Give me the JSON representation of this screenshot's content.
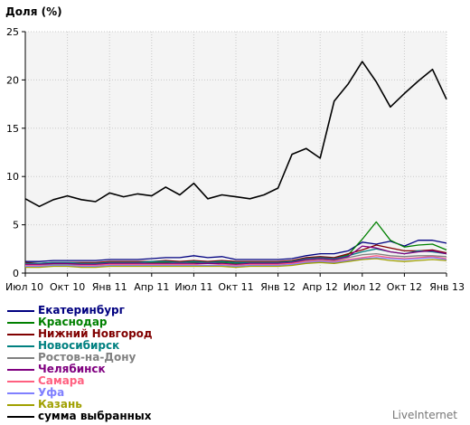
{
  "chart_data": {
    "type": "line",
    "ylabel": "Доля (%)",
    "ylim": [
      0,
      25
    ],
    "yticks": [
      0,
      5,
      10,
      15,
      20,
      25
    ],
    "grid": true,
    "legend_position": "bottom-left",
    "x_tick_labels": [
      "Июл 10",
      "Окт 10",
      "Янв 11",
      "Апр 11",
      "Июл 11",
      "Окт 11",
      "Янв 12",
      "Апр 12",
      "Июл 12",
      "Окт 12",
      "Янв 13"
    ],
    "x_tick_indices": [
      0,
      3,
      6,
      9,
      12,
      15,
      18,
      21,
      24,
      27,
      30
    ],
    "x": [
      "2010-07",
      "2010-08",
      "2010-09",
      "2010-10",
      "2010-11",
      "2010-12",
      "2011-01",
      "2011-02",
      "2011-03",
      "2011-04",
      "2011-05",
      "2011-06",
      "2011-07",
      "2011-08",
      "2011-09",
      "2011-10",
      "2011-11",
      "2011-12",
      "2012-01",
      "2012-02",
      "2012-03",
      "2012-04",
      "2012-05",
      "2012-06",
      "2012-07",
      "2012-08",
      "2012-09",
      "2012-10",
      "2012-11",
      "2012-12",
      "2013-01"
    ],
    "series": [
      {
        "name": "Екатеринбург",
        "color": "#000080",
        "values": [
          1.2,
          1.2,
          1.3,
          1.3,
          1.3,
          1.3,
          1.4,
          1.4,
          1.4,
          1.5,
          1.6,
          1.6,
          1.8,
          1.6,
          1.7,
          1.4,
          1.4,
          1.4,
          1.4,
          1.5,
          1.8,
          2.0,
          2.0,
          2.3,
          3.2,
          3.0,
          3.3,
          2.8,
          3.4,
          3.4,
          3.1
        ]
      },
      {
        "name": "Краснодар",
        "color": "#008000",
        "values": [
          1.0,
          0.9,
          1.0,
          1.0,
          0.9,
          0.9,
          1.0,
          1.0,
          1.0,
          1.1,
          1.1,
          1.0,
          1.1,
          1.0,
          1.1,
          1.0,
          1.0,
          1.0,
          1.0,
          1.2,
          1.5,
          1.6,
          1.5,
          1.9,
          3.5,
          5.3,
          3.4,
          2.7,
          2.9,
          3.0,
          2.4
        ]
      },
      {
        "name": "Нижний Новгород",
        "color": "#800000",
        "values": [
          1.1,
          1.0,
          1.1,
          1.1,
          1.1,
          1.1,
          1.2,
          1.2,
          1.2,
          1.2,
          1.3,
          1.2,
          1.3,
          1.2,
          1.3,
          1.2,
          1.2,
          1.2,
          1.2,
          1.3,
          1.6,
          1.7,
          1.6,
          2.0,
          2.4,
          2.9,
          2.6,
          2.3,
          2.3,
          2.4,
          2.1
        ]
      },
      {
        "name": "Новосибирск",
        "color": "#008080",
        "values": [
          1.0,
          1.0,
          1.1,
          1.1,
          1.0,
          1.0,
          1.1,
          1.1,
          1.1,
          1.2,
          1.2,
          1.1,
          1.2,
          1.1,
          1.2,
          1.1,
          1.1,
          1.1,
          1.1,
          1.2,
          1.5,
          1.6,
          1.5,
          1.8,
          2.2,
          2.5,
          2.2,
          2.0,
          2.3,
          2.2,
          2.0
        ]
      },
      {
        "name": "Ростов-на-Дону",
        "color": "#808080",
        "values": [
          0.9,
          0.9,
          0.9,
          0.9,
          0.9,
          0.9,
          1.0,
          1.0,
          1.0,
          1.0,
          1.0,
          1.0,
          1.0,
          1.0,
          1.0,
          0.9,
          1.0,
          1.0,
          1.0,
          1.1,
          1.3,
          1.4,
          1.3,
          1.6,
          1.9,
          2.0,
          1.8,
          1.7,
          1.8,
          1.8,
          1.7
        ]
      },
      {
        "name": "Челябинск",
        "color": "#800080",
        "values": [
          0.9,
          0.9,
          1.0,
          1.0,
          0.9,
          0.9,
          1.0,
          1.0,
          1.0,
          1.0,
          1.0,
          1.0,
          1.0,
          1.0,
          1.0,
          0.9,
          1.0,
          1.0,
          1.0,
          1.1,
          1.4,
          1.5,
          1.4,
          1.7,
          2.8,
          2.6,
          2.2,
          2.0,
          2.2,
          2.3,
          2.0
        ]
      },
      {
        "name": "Самара",
        "color": "#ff6080",
        "values": [
          0.8,
          0.8,
          0.8,
          0.8,
          0.8,
          0.8,
          0.9,
          0.9,
          0.9,
          0.9,
          0.9,
          0.9,
          0.9,
          0.8,
          0.9,
          0.8,
          0.9,
          0.9,
          0.9,
          1.0,
          1.2,
          1.3,
          1.2,
          1.4,
          1.6,
          1.8,
          1.6,
          1.5,
          1.6,
          1.7,
          1.5
        ]
      },
      {
        "name": "Уфа",
        "color": "#8080ff",
        "values": [
          0.7,
          0.7,
          0.8,
          0.8,
          0.7,
          0.7,
          0.8,
          0.8,
          0.8,
          0.8,
          0.8,
          0.8,
          0.8,
          0.8,
          0.8,
          0.7,
          0.8,
          0.8,
          0.8,
          0.9,
          1.1,
          1.2,
          1.1,
          1.3,
          1.5,
          1.6,
          1.5,
          1.4,
          1.5,
          1.6,
          1.4
        ]
      },
      {
        "name": "Казань",
        "color": "#a0a000",
        "values": [
          0.6,
          0.6,
          0.7,
          0.7,
          0.6,
          0.6,
          0.7,
          0.7,
          0.7,
          0.7,
          0.7,
          0.7,
          0.7,
          0.7,
          0.7,
          0.6,
          0.7,
          0.7,
          0.7,
          0.8,
          1.0,
          1.1,
          1.0,
          1.2,
          1.4,
          1.5,
          1.3,
          1.2,
          1.3,
          1.4,
          1.3
        ]
      },
      {
        "name": "сумма выбранных",
        "color": "#000000",
        "values": [
          7.7,
          6.9,
          7.6,
          8.0,
          7.6,
          7.4,
          8.3,
          7.9,
          8.2,
          8.0,
          8.9,
          8.1,
          9.3,
          7.7,
          8.1,
          7.9,
          7.7,
          8.1,
          8.8,
          12.3,
          12.9,
          11.9,
          17.8,
          19.6,
          21.9,
          19.8,
          17.2,
          18.6,
          19.9,
          21.1,
          18.0
        ]
      }
    ]
  },
  "watermark": "LiveInternet"
}
